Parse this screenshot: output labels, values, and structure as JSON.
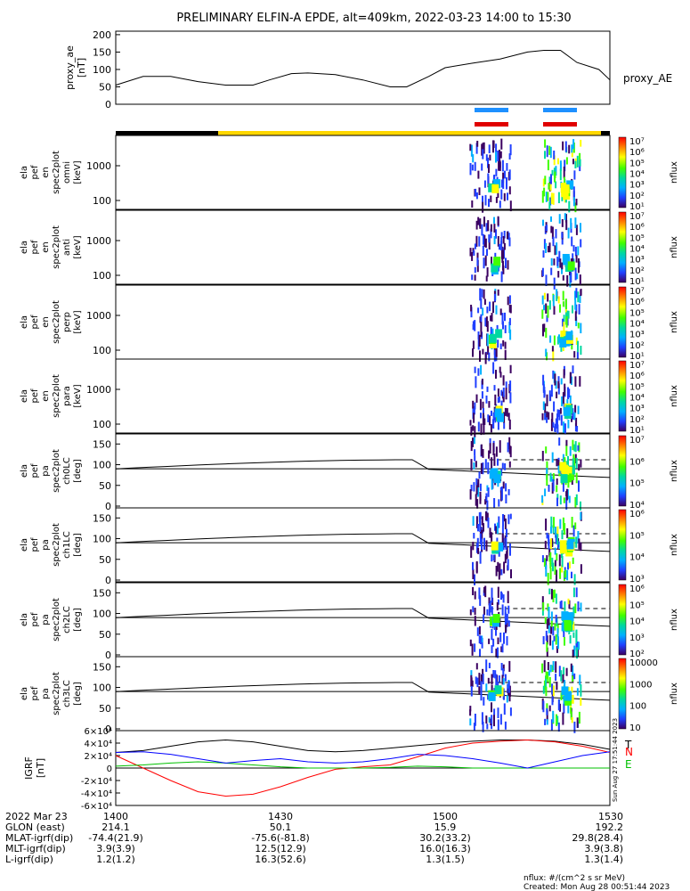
{
  "title": "PRELIMINARY ELFIN-A EPDE, alt=409km, 2022-03-23 14:00 to 15:30",
  "chart_data": [
    {
      "id": "proxy_ae",
      "type": "line",
      "ylabel_lines": [
        "proxy_ae",
        "[nT]"
      ],
      "legend": "proxy_AE",
      "yticks": [
        "0",
        "50",
        "100",
        "150",
        "200"
      ],
      "ylim": [
        0,
        210
      ],
      "x_minutes": [
        0,
        5,
        10,
        15,
        20,
        25,
        28,
        32,
        35,
        40,
        45,
        50,
        53,
        57,
        60,
        65,
        70,
        75,
        78,
        81,
        84,
        88,
        90
      ],
      "y": [
        55,
        80,
        80,
        65,
        55,
        55,
        70,
        88,
        90,
        85,
        70,
        50,
        50,
        80,
        105,
        118,
        130,
        150,
        155,
        155,
        120,
        100,
        70
      ]
    },
    {
      "id": "omni",
      "type": "heatmap",
      "ylabel_lines": [
        "ela",
        "pef",
        "en",
        "spec2plot",
        "omni",
        "[keV]"
      ],
      "yticks": [
        "100",
        "1000"
      ],
      "colorbar": {
        "label": "nflux",
        "ticks": [
          "10⁷",
          "10⁶",
          "10⁵",
          "10⁴",
          "10³",
          "10²",
          "10¹"
        ]
      }
    },
    {
      "id": "anti",
      "type": "heatmap",
      "ylabel_lines": [
        "ela",
        "pef",
        "en",
        "spec2plot",
        "anti",
        "[keV]"
      ],
      "yticks": [
        "100",
        "1000"
      ],
      "colorbar": {
        "label": "nflux",
        "ticks": [
          "10⁷",
          "10⁶",
          "10⁵",
          "10⁴",
          "10³",
          "10²",
          "10¹"
        ]
      }
    },
    {
      "id": "perp",
      "type": "heatmap",
      "ylabel_lines": [
        "ela",
        "pef",
        "en",
        "spec2plot",
        "perp",
        "[keV]"
      ],
      "yticks": [
        "100",
        "1000"
      ],
      "colorbar": {
        "label": "nflux",
        "ticks": [
          "10⁷",
          "10⁶",
          "10⁵",
          "10⁴",
          "10³",
          "10²",
          "10¹"
        ]
      }
    },
    {
      "id": "para",
      "type": "heatmap",
      "ylabel_lines": [
        "ela",
        "pef",
        "en",
        "spec2plot",
        "para",
        "[keV]"
      ],
      "yticks": [
        "100",
        "1000"
      ],
      "colorbar": {
        "label": "nflux",
        "ticks": [
          "10⁷",
          "10⁶",
          "10⁵",
          "10⁴",
          "10³",
          "10²",
          "10¹"
        ]
      }
    },
    {
      "id": "ch0LC",
      "type": "heatmap",
      "ylabel_lines": [
        "ela",
        "pef",
        "pa",
        "spec2plot",
        "ch0LC",
        "[deg]"
      ],
      "yticks": [
        "0",
        "50",
        "100",
        "150"
      ],
      "colorbar": {
        "label": "nflux",
        "ticks": [
          "10⁷",
          "10⁶",
          "10⁵",
          "10⁴"
        ]
      }
    },
    {
      "id": "ch1LC",
      "type": "heatmap",
      "ylabel_lines": [
        "ela",
        "pef",
        "pa",
        "spec2plot",
        "ch1LC",
        "[deg]"
      ],
      "yticks": [
        "0",
        "50",
        "100",
        "150"
      ],
      "colorbar": {
        "label": "nflux",
        "ticks": [
          "10⁶",
          "10⁵",
          "10⁴",
          "10³"
        ]
      }
    },
    {
      "id": "ch2LC",
      "type": "heatmap",
      "ylabel_lines": [
        "ela",
        "pef",
        "pa",
        "spec2plot",
        "ch2LC",
        "[deg]"
      ],
      "yticks": [
        "0",
        "50",
        "100",
        "150"
      ],
      "colorbar": {
        "label": "nflux",
        "ticks": [
          "10⁶",
          "10⁵",
          "10⁴",
          "10³",
          "10²"
        ]
      }
    },
    {
      "id": "ch3LC",
      "type": "heatmap",
      "ylabel_lines": [
        "ela",
        "pef",
        "pa",
        "spec2plot",
        "ch3LC",
        "[deg]"
      ],
      "yticks": [
        "0",
        "50",
        "100",
        "150"
      ],
      "colorbar": {
        "label": "nflux",
        "ticks": [
          "10000",
          "1000",
          "100",
          "10"
        ]
      }
    },
    {
      "id": "igrf",
      "type": "line",
      "ylabel_lines": [
        "IGRF",
        "[nT]"
      ],
      "yticks": [
        "-6×10⁴",
        "-4×10⁴",
        "-2×10⁴",
        "0",
        "2×10⁴",
        "4×10⁴",
        "6×10⁴"
      ],
      "ylim": [
        -60000,
        60000
      ],
      "x_minutes": [
        0,
        5,
        10,
        15,
        20,
        25,
        30,
        35,
        40,
        45,
        50,
        55,
        60,
        65,
        70,
        75,
        80,
        85,
        90
      ],
      "series": [
        {
          "name": "T",
          "color": "#000000",
          "values": [
            25000,
            28000,
            35000,
            42000,
            45000,
            42000,
            35000,
            28000,
            26000,
            28000,
            32000,
            36000,
            40000,
            43000,
            45000,
            45000,
            43000,
            38000,
            30000
          ]
        },
        {
          "name": "N",
          "color": "#ff0000",
          "values": [
            20000,
            0,
            -20000,
            -38000,
            -45000,
            -42000,
            -30000,
            -15000,
            -2000,
            2000,
            5000,
            18000,
            32000,
            40000,
            43000,
            45000,
            42000,
            35000,
            25000
          ]
        },
        {
          "name": "E",
          "color": "#00c000",
          "values": [
            3000,
            5000,
            8000,
            10000,
            8000,
            5000,
            2000,
            0,
            0,
            0,
            1000,
            3000,
            2000,
            0,
            0,
            0,
            0,
            0,
            0
          ]
        },
        {
          "name": "",
          "color": "#0000ff",
          "values": [
            25000,
            26000,
            22000,
            15000,
            8000,
            12000,
            15000,
            10000,
            8000,
            10000,
            15000,
            22000,
            20000,
            15000,
            8000,
            0,
            10000,
            20000,
            26000
          ]
        }
      ],
      "vertical_text": "Sun Aug 27 17:51:44 2023"
    }
  ],
  "footer": {
    "rows": [
      [
        "2022 Mar 23",
        "1400",
        "1430",
        "1500",
        "1530"
      ],
      [
        "GLON (east)",
        "214.1",
        "50.1",
        "15.9",
        "192.2"
      ],
      [
        "MLAT-igrf(dip)",
        "-74.4(21.9)",
        "-75.6(-81.8)",
        "30.2(33.2)",
        "29.8(28.4)"
      ],
      [
        "MLT-igrf(dip)",
        "3.9(3.9)",
        "12.5(12.9)",
        "16.0(16.3)",
        "3.9(3.8)"
      ],
      [
        "L-igrf(dip)",
        "1.2(1.2)",
        "16.3(52.6)",
        "1.3(1.5)",
        "1.3(1.4)"
      ]
    ],
    "units_note": "nflux: #/(cm^2 s sr MeV)",
    "created": "Created: Mon Aug 28 00:51:44 2023"
  }
}
